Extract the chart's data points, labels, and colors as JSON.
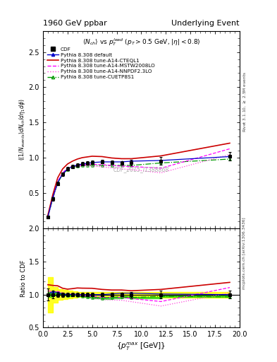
{
  "title_left": "1960 GeV ppbar",
  "title_right": "Underlying Event",
  "subtitle": "$\\langle N_{ch}\\rangle$ vs $p_T^{lead}$ ($p_T > 0.5$ GeV, $|\\eta| < 0.8$)",
  "ylabel_main": "$((1/N_{events}) dN_{ch}/d\\eta_1 d\\phi)$",
  "ylabel_ratio": "Ratio to CDF",
  "xlabel": "$\\{p_T^{max}$ [GeV]$\\}$",
  "watermark": "CDF_2015_I1388868",
  "side_label_top": "Rivet 3.1.10, $\\geq$ 2.5M events",
  "side_label_bot": "mcplots.cern.ch [arXiv:1306.3436]",
  "cdf_x": [
    0.5,
    1.0,
    1.5,
    2.0,
    2.5,
    3.0,
    3.5,
    4.0,
    4.5,
    5.0,
    6.0,
    7.0,
    8.0,
    9.0,
    12.0,
    19.0
  ],
  "cdf_y": [
    0.165,
    0.42,
    0.635,
    0.77,
    0.845,
    0.875,
    0.895,
    0.915,
    0.925,
    0.935,
    0.945,
    0.935,
    0.925,
    0.935,
    0.955,
    1.02
  ],
  "cdf_yerr": [
    0.015,
    0.025,
    0.025,
    0.025,
    0.025,
    0.025,
    0.025,
    0.025,
    0.025,
    0.025,
    0.025,
    0.025,
    0.025,
    0.04,
    0.055,
    0.06
  ],
  "default_x": [
    0.5,
    1.0,
    1.5,
    2.0,
    2.5,
    3.0,
    3.5,
    4.0,
    4.5,
    5.0,
    6.0,
    7.0,
    8.0,
    9.0,
    12.0,
    19.0
  ],
  "default_y": [
    0.165,
    0.44,
    0.655,
    0.775,
    0.845,
    0.88,
    0.9,
    0.915,
    0.925,
    0.935,
    0.945,
    0.945,
    0.945,
    0.955,
    0.965,
    1.02
  ],
  "cteql1_x": [
    0.5,
    1.0,
    1.5,
    2.0,
    2.5,
    3.0,
    3.5,
    4.0,
    4.5,
    5.0,
    6.0,
    7.0,
    8.0,
    9.0,
    12.0,
    19.0
  ],
  "cteql1_y": [
    0.19,
    0.48,
    0.72,
    0.845,
    0.915,
    0.955,
    0.985,
    1.005,
    1.015,
    1.025,
    1.02,
    1.0,
    0.99,
    0.99,
    1.03,
    1.21
  ],
  "mstw_x": [
    0.5,
    1.0,
    1.5,
    2.0,
    2.5,
    3.0,
    3.5,
    4.0,
    4.5,
    5.0,
    6.0,
    7.0,
    8.0,
    9.0,
    12.0,
    19.0
  ],
  "mstw_y": [
    0.175,
    0.435,
    0.665,
    0.79,
    0.855,
    0.885,
    0.895,
    0.905,
    0.91,
    0.91,
    0.905,
    0.895,
    0.885,
    0.88,
    0.855,
    1.13
  ],
  "nnpdf_x": [
    0.5,
    1.0,
    1.5,
    2.0,
    2.5,
    3.0,
    3.5,
    4.0,
    4.5,
    5.0,
    6.0,
    7.0,
    8.0,
    9.0,
    12.0,
    19.0
  ],
  "nnpdf_y": [
    0.175,
    0.435,
    0.665,
    0.785,
    0.845,
    0.875,
    0.885,
    0.89,
    0.89,
    0.885,
    0.875,
    0.86,
    0.845,
    0.835,
    0.79,
    1.05
  ],
  "cuetp_x": [
    0.5,
    1.0,
    1.5,
    2.0,
    2.5,
    3.0,
    3.5,
    4.0,
    4.5,
    5.0,
    6.0,
    7.0,
    8.0,
    9.0,
    12.0,
    19.0
  ],
  "cuetp_y": [
    0.165,
    0.425,
    0.645,
    0.77,
    0.835,
    0.87,
    0.88,
    0.89,
    0.895,
    0.895,
    0.895,
    0.895,
    0.895,
    0.895,
    0.93,
    0.985
  ],
  "xlim": [
    0,
    20
  ],
  "ylim_main": [
    0.0,
    2.8
  ],
  "ylim_ratio": [
    0.5,
    2.0
  ],
  "yticks_main": [
    0.5,
    1.0,
    1.5,
    2.0,
    2.5
  ],
  "yticks_ratio": [
    0.5,
    1.0,
    1.5,
    2.0
  ],
  "color_cdf": "#000000",
  "color_default": "#0000cc",
  "color_cteql1": "#cc0000",
  "color_mstw": "#ff00ff",
  "color_nnpdf": "#ff44dd",
  "color_cuetp": "#009900",
  "ratio_default_y": [
    1.0,
    1.048,
    1.032,
    1.006,
    1.0,
    1.006,
    1.006,
    1.0,
    1.0,
    1.0,
    1.0,
    1.011,
    1.022,
    1.022,
    1.01,
    1.0
  ],
  "ratio_cteql1_y": [
    1.15,
    1.14,
    1.134,
    1.097,
    1.083,
    1.091,
    1.101,
    1.098,
    1.097,
    1.096,
    1.079,
    1.07,
    1.07,
    1.059,
    1.079,
    1.186
  ],
  "ratio_mstw_y": [
    1.061,
    1.036,
    1.047,
    1.026,
    1.012,
    1.011,
    1.0,
    0.989,
    0.984,
    0.974,
    0.958,
    0.958,
    0.957,
    0.941,
    0.895,
    1.108
  ],
  "ratio_nnpdf_y": [
    1.061,
    1.036,
    1.047,
    1.019,
    1.0,
    1.0,
    0.989,
    0.972,
    0.962,
    0.947,
    0.926,
    0.92,
    0.914,
    0.893,
    0.827,
    1.029
  ],
  "ratio_cuetp_y": [
    1.0,
    1.012,
    1.016,
    1.0,
    0.988,
    0.994,
    0.983,
    0.972,
    0.968,
    0.957,
    0.947,
    0.958,
    0.968,
    0.957,
    0.974,
    0.965
  ],
  "cdf_band_lo": [
    0.73,
    0.88,
    0.92,
    0.93,
    0.94,
    0.95,
    0.96,
    0.96,
    0.965,
    0.965,
    0.965,
    0.965,
    0.965,
    0.955,
    0.955,
    0.955
  ],
  "cdf_band_hi": [
    1.27,
    1.12,
    1.08,
    1.07,
    1.06,
    1.05,
    1.04,
    1.04,
    1.035,
    1.035,
    1.035,
    1.035,
    1.035,
    1.045,
    1.045,
    1.045
  ],
  "cuetp_band_lo": [
    0.96,
    0.99,
    1.0,
    0.985,
    0.977,
    0.983,
    0.972,
    0.961,
    0.957,
    0.946,
    0.936,
    0.947,
    0.957,
    0.946,
    0.963,
    0.954
  ],
  "cuetp_band_hi": [
    1.04,
    1.035,
    1.032,
    1.015,
    0.999,
    1.005,
    0.994,
    0.983,
    0.979,
    0.968,
    0.958,
    0.969,
    0.979,
    0.968,
    0.985,
    0.976
  ]
}
